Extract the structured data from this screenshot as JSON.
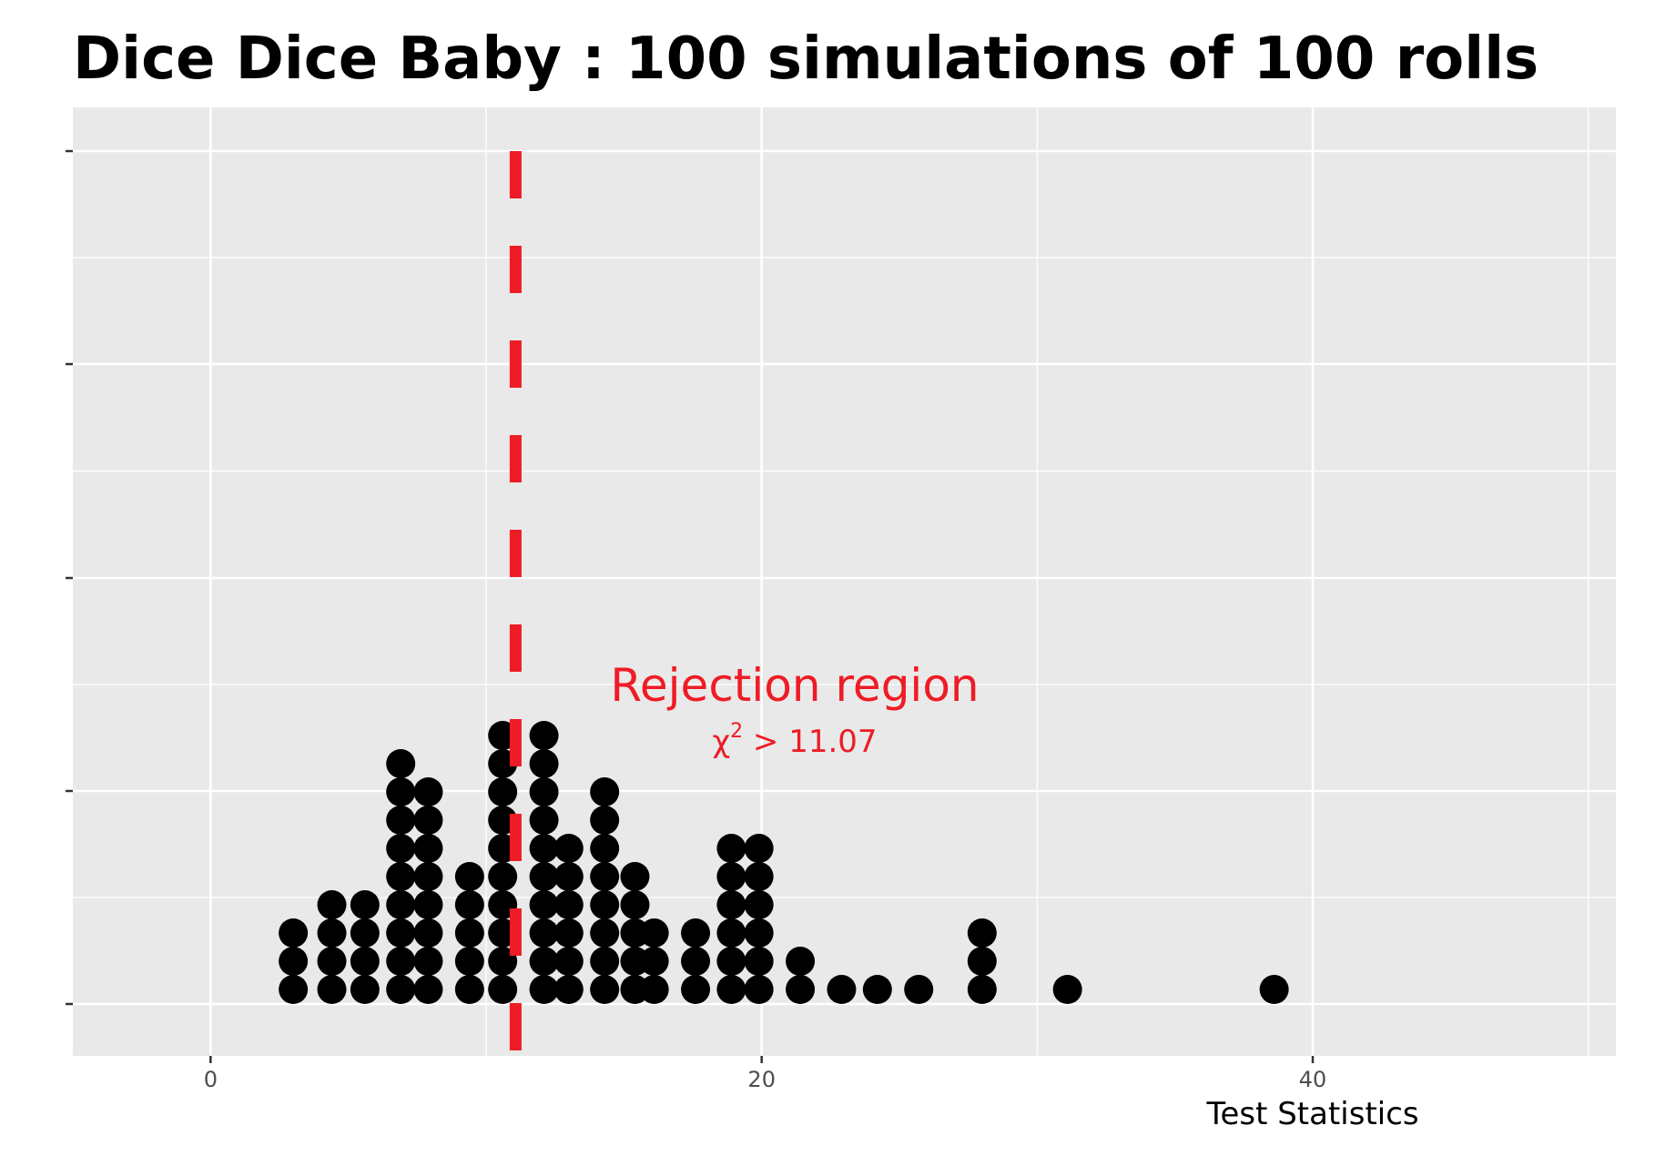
{
  "chart_data": {
    "type": "dotplot",
    "title": "Dice Dice Baby : 100 simulations of 100 rolls",
    "xlabel": "Test Statistics",
    "ylabel": "",
    "xlim": [
      -5,
      51
    ],
    "x_ticks": [
      0,
      20,
      40
    ],
    "y_axis_tick_labels": false,
    "grid": true,
    "dots": [
      {
        "x": 3.0,
        "count": 3
      },
      {
        "x": 4.4,
        "count": 4
      },
      {
        "x": 5.6,
        "count": 4
      },
      {
        "x": 6.9,
        "count": 9
      },
      {
        "x": 7.9,
        "count": 8
      },
      {
        "x": 9.4,
        "count": 5
      },
      {
        "x": 10.6,
        "count": 10
      },
      {
        "x": 12.1,
        "count": 10
      },
      {
        "x": 13.0,
        "count": 6
      },
      {
        "x": 14.3,
        "count": 8
      },
      {
        "x": 15.4,
        "count": 5
      },
      {
        "x": 16.1,
        "count": 3
      },
      {
        "x": 17.6,
        "count": 3
      },
      {
        "x": 18.9,
        "count": 6
      },
      {
        "x": 19.9,
        "count": 6
      },
      {
        "x": 21.4,
        "count": 2
      },
      {
        "x": 22.9,
        "count": 1
      },
      {
        "x": 24.2,
        "count": 1
      },
      {
        "x": 25.7,
        "count": 1
      },
      {
        "x": 28.0,
        "count": 3
      },
      {
        "x": 31.1,
        "count": 1
      },
      {
        "x": 38.6,
        "count": 1
      }
    ],
    "critical_value": 11.07,
    "reference_line_color": "#ee1c25",
    "dot_color": "#000000",
    "panel_color": "#e9e9e9",
    "annotation": {
      "text": "Rejection region",
      "formula_symbol": "χ",
      "formula_exponent": "2",
      "formula_rest": " > 11.07",
      "x": 21.2,
      "color": "#ee1c25"
    }
  }
}
